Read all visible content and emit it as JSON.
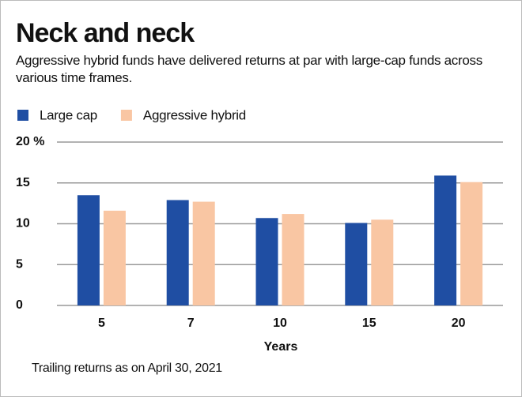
{
  "chart_data": {
    "type": "bar",
    "title": "Neck and neck",
    "subtitle": "Aggressive hybrid funds have delivered returns at par with large-cap funds across various time frames.",
    "x_label": "Years",
    "note": "Trailing returns as on April 30, 2021",
    "categories": [
      "5",
      "7",
      "10",
      "15",
      "20"
    ],
    "series": [
      {
        "name": "Large cap",
        "color": "#1f4ea3",
        "values": [
          13.5,
          12.9,
          10.7,
          10.1,
          15.9
        ]
      },
      {
        "name": "Aggressive hybrid",
        "color": "#f9c6a3",
        "values": [
          11.6,
          12.7,
          11.2,
          10.5,
          15.1
        ]
      }
    ],
    "ylim": [
      0,
      20
    ],
    "yticks": [
      0,
      5,
      10,
      15,
      {
        "value": 20,
        "label": "20 %"
      }
    ],
    "grid": true
  }
}
